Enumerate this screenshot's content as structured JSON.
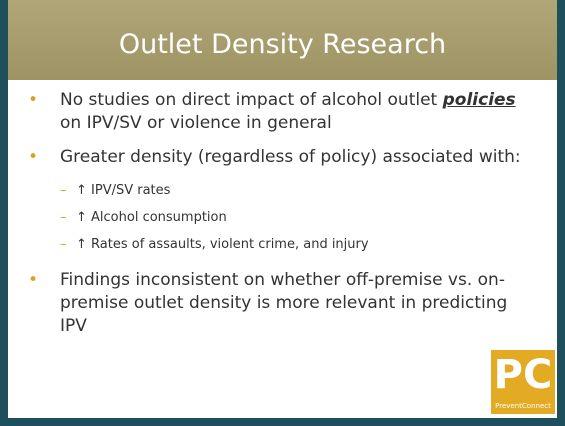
{
  "header": {
    "title": "Outlet Density Research"
  },
  "bullets": [
    {
      "parts": [
        "No studies on direct impact of alcohol outlet ",
        "policies",
        " on IPV/SV or violence in general"
      ]
    },
    {
      "text": "Greater density (regardless of policy) associated with:",
      "subitems": [
        "↑ IPV/SV rates",
        "↑ Alcohol consumption",
        "↑ Rates of assaults, violent crime, and injury"
      ]
    },
    {
      "text": "Findings inconsistent on whether off-premise vs. on-premise outlet density is more relevant in predicting IPV"
    }
  ],
  "logo": {
    "mark": "PC",
    "name": "PreventConnect"
  }
}
